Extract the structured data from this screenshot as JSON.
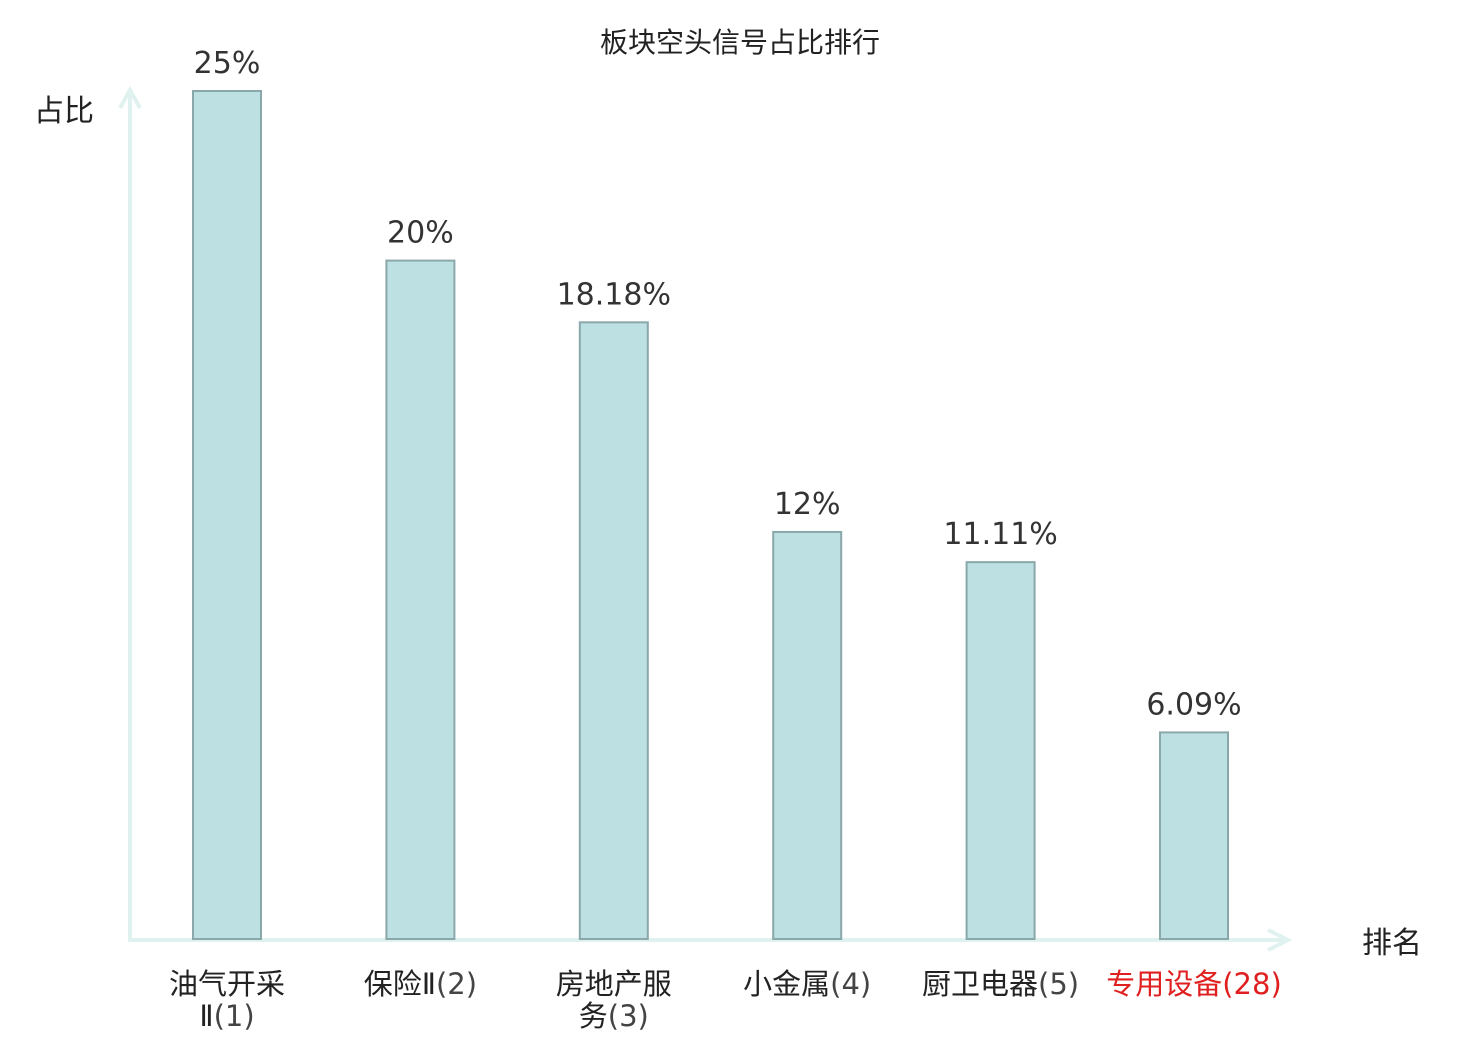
{
  "chart_data": {
    "type": "bar",
    "title": "板块空头信号占比排行",
    "ylabel": "占比",
    "xlabel": "排名",
    "ylim": [
      0,
      25
    ],
    "grid": false,
    "categories": [
      {
        "lines": [
          {
            "text": "油气开采",
            "rank": ""
          },
          {
            "text": "Ⅱ",
            "rank": "(1)"
          }
        ],
        "highlight": false
      },
      {
        "lines": [
          {
            "text": "保险Ⅱ",
            "rank": "(2)"
          }
        ],
        "highlight": false
      },
      {
        "lines": [
          {
            "text": "房地产服",
            "rank": ""
          },
          {
            "text": "务",
            "rank": "(3)"
          }
        ],
        "highlight": false
      },
      {
        "lines": [
          {
            "text": "小金属",
            "rank": "(4)"
          }
        ],
        "highlight": false
      },
      {
        "lines": [
          {
            "text": "厨卫电器",
            "rank": "(5)"
          }
        ],
        "highlight": false
      },
      {
        "lines": [
          {
            "text": "专用设备",
            "rank": "(28)"
          }
        ],
        "highlight": true
      }
    ],
    "values": [
      25,
      20,
      18.18,
      12,
      11.11,
      6.09
    ],
    "value_labels": [
      "25%",
      "20%",
      "18.18%",
      "12%",
      "11.11%",
      "6.09%"
    ],
    "colors": {
      "bar_fill": "#bde0e3",
      "bar_stroke": "#8aa7aa",
      "axis": "#e0f2ef",
      "category_text": "#222222",
      "rank_text": "#444444",
      "highlight": "#e02020"
    }
  }
}
